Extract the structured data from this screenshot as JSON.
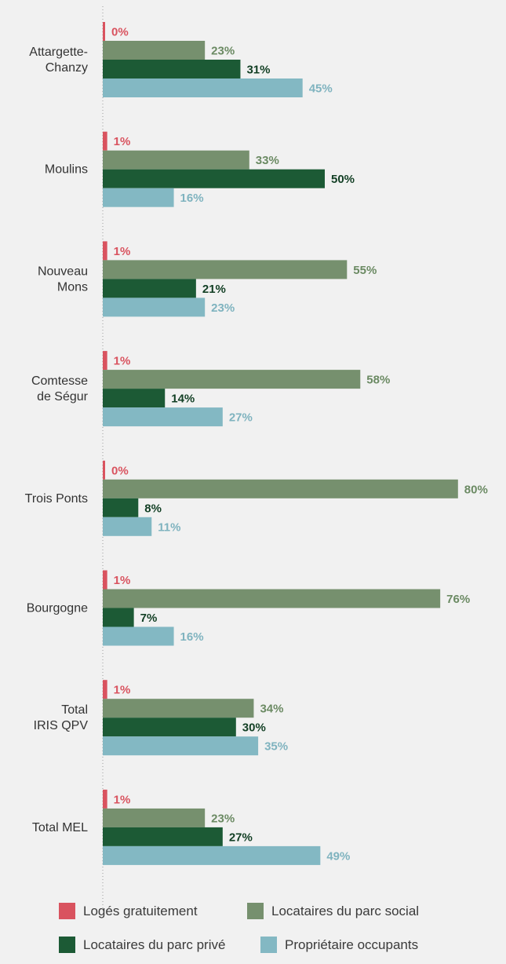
{
  "chart_data": {
    "type": "bar",
    "orientation": "horizontal",
    "categories": [
      [
        "Attargette-",
        "Chanzy"
      ],
      [
        "Moulins"
      ],
      [
        "Nouveau",
        "Mons"
      ],
      [
        "Comtesse",
        "de Ségur"
      ],
      [
        "Trois Ponts"
      ],
      [
        "Bourgogne"
      ],
      [
        "Total",
        "IRIS QPV"
      ],
      [
        "Total MEL"
      ]
    ],
    "series": [
      {
        "name": "Logés gratuitement",
        "color": "#d9535f",
        "label_color": "#d9535f",
        "values": [
          0,
          1,
          1,
          1,
          0,
          1,
          1,
          1
        ]
      },
      {
        "name": "Locataires du parc social",
        "color": "#76906e",
        "label_color": "#6b8a63",
        "values": [
          23,
          33,
          55,
          58,
          80,
          76,
          34,
          23
        ]
      },
      {
        "name": "Locataires du parc privé",
        "color": "#1c5a35",
        "label_color": "#123f24",
        "values": [
          31,
          50,
          21,
          14,
          8,
          7,
          30,
          27
        ]
      },
      {
        "name": "Propriétaire occupants",
        "color": "#83b8c3",
        "label_color": "#7fb3bf",
        "values": [
          45,
          16,
          23,
          27,
          11,
          16,
          35,
          49
        ]
      }
    ],
    "value_suffix": "%",
    "xlim": [
      0,
      80
    ],
    "grid": false,
    "legend_position": "bottom"
  }
}
